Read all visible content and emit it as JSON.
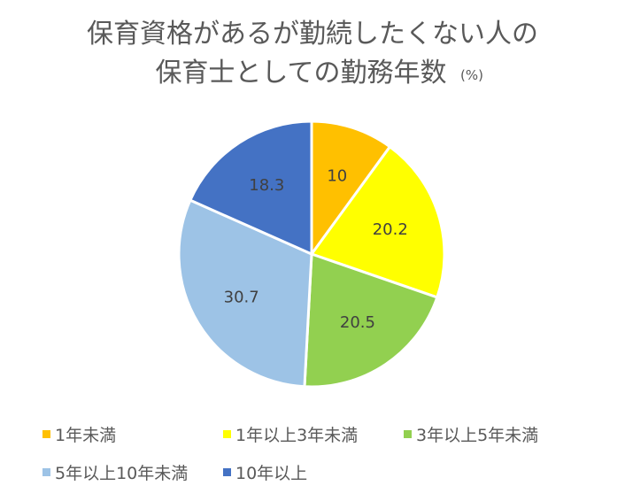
{
  "chart_data": {
    "type": "pie",
    "title_lines": [
      "保育資格があるが勤続したくない人の",
      "保育士としての勤務年数"
    ],
    "title_unit": "(%)",
    "categories": [
      "1年未満",
      "1年以上3年未満",
      "3年以上5年未満",
      "5年以上10年未満",
      "10年以上"
    ],
    "values": [
      10,
      20.2,
      20.5,
      30.7,
      18.3
    ],
    "labels": [
      "10",
      "20.2",
      "20.5",
      "30.7",
      "18.3"
    ],
    "colors": [
      "#FFC000",
      "#FFFF00",
      "#92D050",
      "#9DC3E6",
      "#4472C4"
    ],
    "legend_position": "bottom"
  }
}
